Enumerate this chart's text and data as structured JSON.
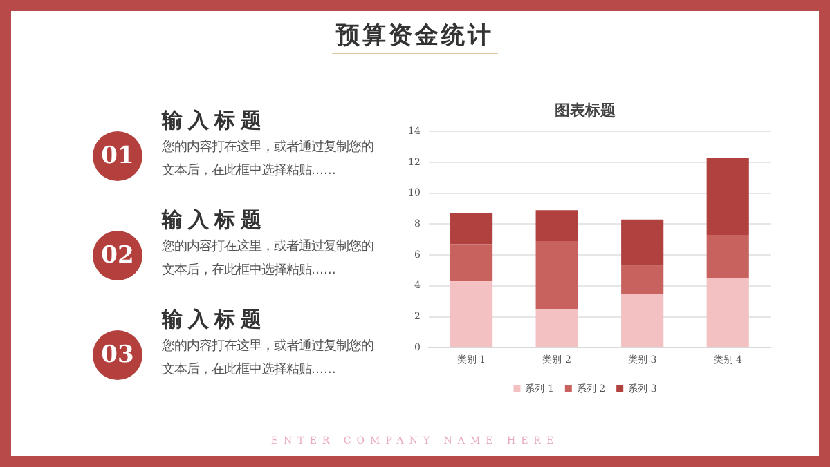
{
  "chart_data": {
    "type": "bar",
    "title": "图表标题",
    "stacked": true,
    "categories": [
      "类别 1",
      "类别 2",
      "类别 3",
      "类别 4"
    ],
    "series": [
      {
        "name": "系列 1",
        "color": "#f4c1c3",
        "values": [
          4.3,
          2.5,
          3.5,
          4.5
        ]
      },
      {
        "name": "系列 2",
        "color": "#c8625f",
        "values": [
          2.4,
          4.4,
          1.8,
          2.8
        ]
      },
      {
        "name": "系列 3",
        "color": "#b0413e",
        "values": [
          2,
          2,
          3,
          5
        ]
      }
    ],
    "ylim": [
      0,
      14
    ],
    "yticks": [
      0,
      2,
      4,
      6,
      8,
      10,
      12,
      14
    ],
    "grid": "y",
    "legend": "bottom",
    "annotations": [
      "预算资金统计",
      "01",
      "输入标题",
      "您的内容打在这里，或者通过复制您的文本后，在此框中选择粘贴......",
      "02",
      "输入标题",
      "您的内容打在这里，或者通过复制您的文本后，在此框中选择粘贴......",
      "03",
      "输入标题",
      "您的内容打在这里，或者通过复制您的文本后，在此框中选择粘贴......",
      "ENTER COMPANY NAME HERE"
    ]
  }
}
